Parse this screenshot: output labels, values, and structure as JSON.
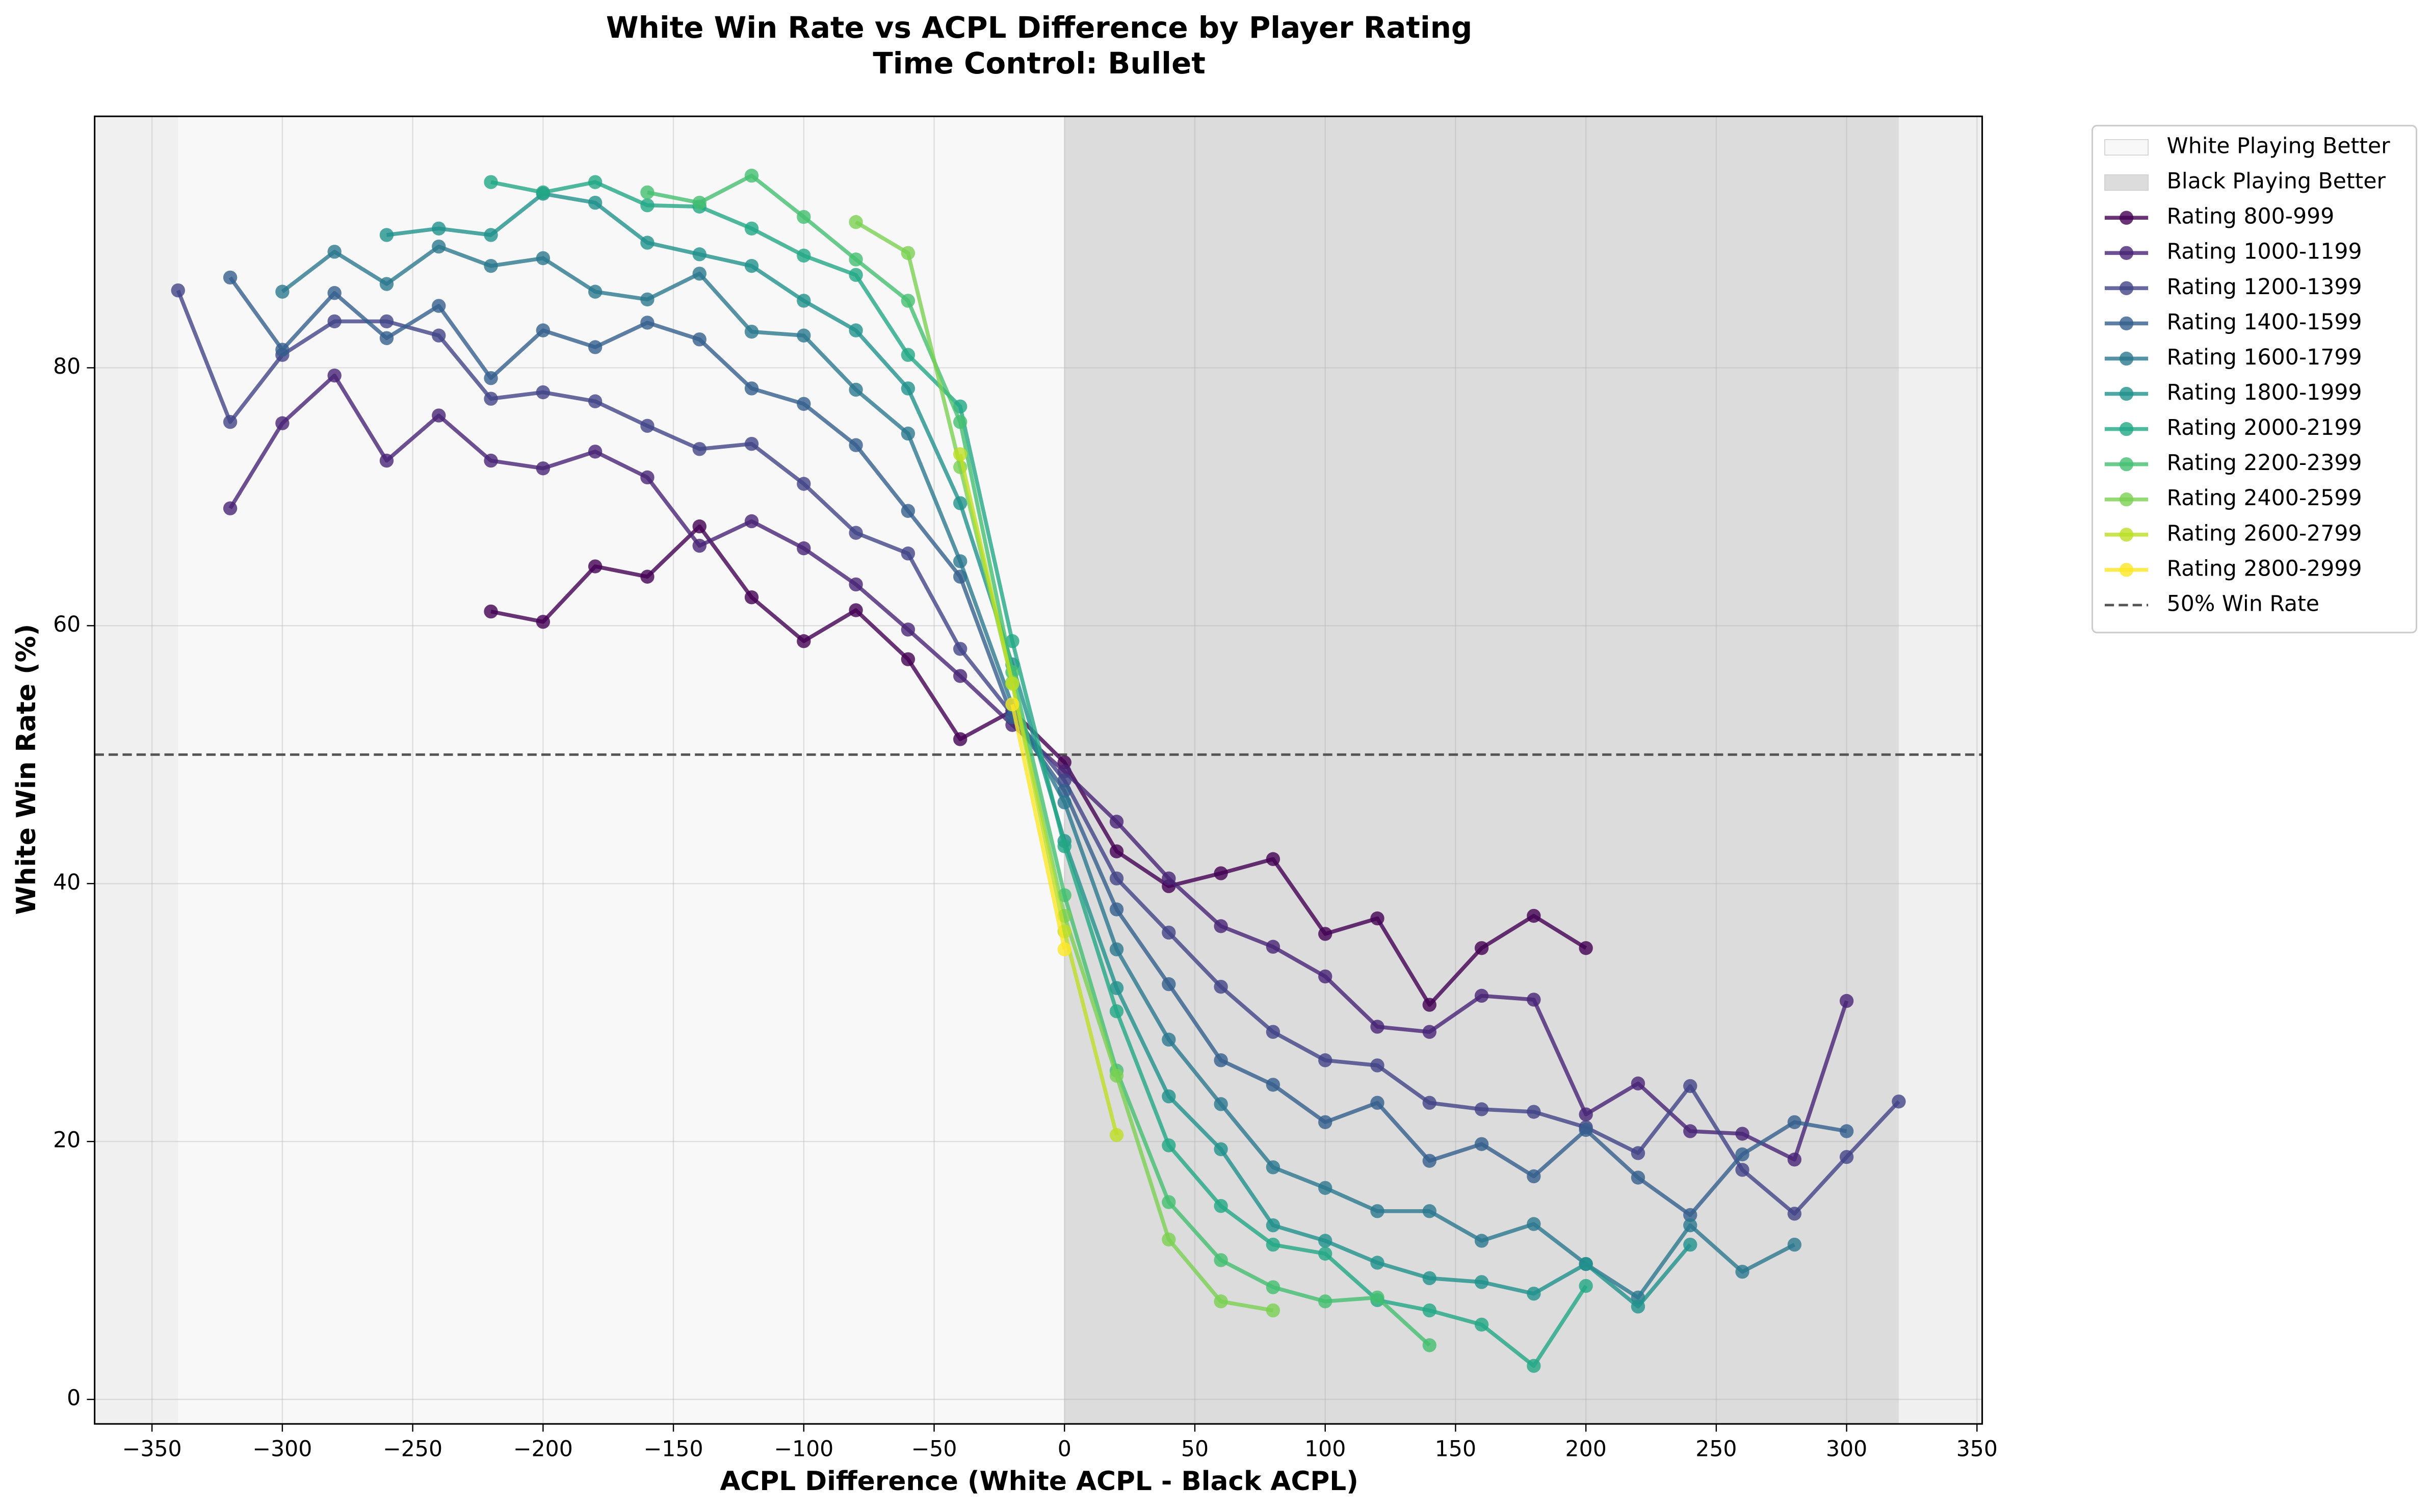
{
  "chart_data": {
    "type": "line",
    "title": "White Win Rate vs ACPL Difference by Player Rating",
    "subtitle": "Time Control: Bullet",
    "x_label": "ACPL Difference (White ACPL - Black ACPL)",
    "y_label": "White Win Rate (%)",
    "xlim": [
      -372,
      352
    ],
    "ylim": [
      -1.9,
      99.5
    ],
    "xticks": [
      {
        "value": -350,
        "label": "−350"
      },
      {
        "value": -300,
        "label": "−300"
      },
      {
        "value": -250,
        "label": "−250"
      },
      {
        "value": -200,
        "label": "−200"
      },
      {
        "value": -150,
        "label": "−150"
      },
      {
        "value": -100,
        "label": "−100"
      },
      {
        "value": -50,
        "label": "−50"
      },
      0,
      50,
      100,
      150,
      200,
      250,
      300,
      350
    ],
    "yticks": [
      0,
      20,
      40,
      60,
      80
    ],
    "grid": true,
    "legend": "outside-upper-right",
    "spans": [
      {
        "name": "White Playing Better",
        "color": "#f8f8f8",
        "xmin": -340,
        "xmax": 0
      },
      {
        "name": "Black Playing Better",
        "color": "#dcdcdc",
        "xmin": 0,
        "xmax": 320
      }
    ],
    "series": [
      {
        "name": "Rating 800-999",
        "color": "#440154",
        "x": [
          -220,
          -200,
          -180,
          -160,
          -140,
          -120,
          -100,
          -80,
          -60,
          -40,
          -20,
          0,
          20,
          40,
          60,
          80,
          100,
          120,
          140,
          160,
          180,
          200
        ],
        "values": [
          61.1,
          60.3,
          64.6,
          63.8,
          67.7,
          62.2,
          58.8,
          61.2,
          57.4,
          51.2,
          53.4,
          49.4,
          42.5,
          39.8,
          40.8,
          41.9,
          36.1,
          37.3,
          30.6,
          35.0,
          37.5,
          35.0
        ]
      },
      {
        "name": "Rating 1000-1199",
        "color": "#482475",
        "x": [
          -320,
          -300,
          -280,
          -260,
          -240,
          -220,
          -200,
          -180,
          -160,
          -140,
          -120,
          -100,
          -80,
          -60,
          -40,
          -20,
          0,
          20,
          40,
          60,
          80,
          100,
          120,
          140,
          160,
          180,
          200,
          220,
          240,
          260,
          280,
          300
        ],
        "values": [
          69.1,
          75.7,
          79.4,
          72.8,
          76.3,
          72.8,
          72.2,
          73.5,
          71.5,
          66.2,
          68.1,
          66.0,
          63.2,
          59.7,
          56.1,
          52.3,
          48.7,
          44.8,
          40.4,
          36.7,
          35.1,
          32.8,
          28.9,
          28.5,
          31.3,
          31.0,
          22.1,
          24.5,
          20.8,
          20.6,
          18.6,
          30.9
        ]
      },
      {
        "name": "Rating 1200-1399",
        "color": "#414487",
        "x": [
          -340,
          -320,
          -300,
          -280,
          -260,
          -240,
          -220,
          -200,
          -180,
          -160,
          -140,
          -120,
          -100,
          -80,
          -60,
          -40,
          -20,
          0,
          20,
          40,
          60,
          80,
          100,
          120,
          140,
          160,
          180,
          200,
          220,
          240,
          260,
          280,
          300,
          320
        ],
        "values": [
          86.0,
          75.8,
          81.0,
          83.6,
          83.6,
          82.5,
          77.6,
          78.1,
          77.4,
          75.5,
          73.7,
          74.1,
          71.0,
          67.2,
          65.6,
          58.2,
          53.1,
          48.0,
          40.4,
          36.2,
          32.0,
          28.5,
          26.3,
          25.9,
          23.0,
          22.5,
          22.3,
          21.1,
          19.1,
          24.3,
          17.8,
          14.4,
          18.8,
          23.1
        ]
      },
      {
        "name": "Rating 1400-1599",
        "color": "#355f8d",
        "x": [
          -320,
          -300,
          -280,
          -260,
          -240,
          -220,
          -200,
          -180,
          -160,
          -140,
          -120,
          -100,
          -80,
          -60,
          -40,
          -20,
          0,
          20,
          40,
          60,
          80,
          100,
          120,
          140,
          160,
          180,
          200,
          220,
          240,
          260,
          280,
          300
        ],
        "values": [
          87.0,
          81.4,
          85.8,
          82.3,
          84.8,
          79.2,
          82.9,
          81.6,
          83.5,
          82.2,
          78.4,
          77.2,
          74.0,
          68.9,
          63.8,
          52.9,
          47.2,
          38.0,
          32.2,
          26.3,
          24.4,
          21.5,
          23.0,
          18.5,
          19.8,
          17.3,
          20.9,
          17.2,
          14.3,
          19.0,
          21.5,
          20.8
        ]
      },
      {
        "name": "Rating 1600-1799",
        "color": "#2a788e",
        "x": [
          -300,
          -280,
          -260,
          -240,
          -220,
          -200,
          -180,
          -160,
          -140,
          -120,
          -100,
          -80,
          -60,
          -40,
          -20,
          0,
          20,
          40,
          60,
          80,
          100,
          120,
          140,
          160,
          180,
          200,
          220,
          240,
          260,
          280
        ],
        "values": [
          85.9,
          89.0,
          86.5,
          89.4,
          87.9,
          88.5,
          85.9,
          85.3,
          87.3,
          82.8,
          82.5,
          78.3,
          74.9,
          65.0,
          53.8,
          46.3,
          34.9,
          27.9,
          22.9,
          18.0,
          16.4,
          14.6,
          14.6,
          12.3,
          13.6,
          10.5,
          7.9,
          13.5,
          9.9,
          12.0
        ]
      },
      {
        "name": "Rating 1800-1999",
        "color": "#21918c",
        "x": [
          -260,
          -240,
          -220,
          -200,
          -180,
          -160,
          -140,
          -120,
          -100,
          -80,
          -60,
          -40,
          -20,
          0,
          20,
          40,
          60,
          80,
          100,
          120,
          140,
          160,
          180,
          200,
          220,
          240
        ],
        "values": [
          90.3,
          90.8,
          90.3,
          93.5,
          92.8,
          89.7,
          88.8,
          87.9,
          85.2,
          82.9,
          78.4,
          69.5,
          57.0,
          43.3,
          31.9,
          23.5,
          19.4,
          13.5,
          12.3,
          10.6,
          9.4,
          9.1,
          8.2,
          10.5,
          7.2,
          12.0
        ]
      },
      {
        "name": "Rating 2000-2199",
        "color": "#22a884",
        "x": [
          -220,
          -200,
          -180,
          -160,
          -140,
          -120,
          -100,
          -80,
          -60,
          -40,
          -20,
          0,
          20,
          40,
          60,
          80,
          100,
          120,
          140,
          160,
          180,
          200
        ],
        "values": [
          94.4,
          93.6,
          94.4,
          92.6,
          92.5,
          90.8,
          88.7,
          87.2,
          81.0,
          77.0,
          58.8,
          42.9,
          30.1,
          19.7,
          15.0,
          12.0,
          11.3,
          7.7,
          6.9,
          5.8,
          2.6,
          8.8
        ]
      },
      {
        "name": "Rating 2200-2399",
        "color": "#44bf70",
        "x": [
          -160,
          -140,
          -120,
          -100,
          -80,
          -60,
          -40,
          -20,
          0,
          20,
          40,
          60,
          80,
          100,
          120,
          140
        ],
        "values": [
          93.6,
          92.8,
          94.9,
          91.7,
          88.4,
          85.2,
          75.8,
          56.4,
          39.1,
          25.5,
          15.3,
          10.8,
          8.7,
          7.6,
          7.9,
          4.2
        ]
      },
      {
        "name": "Rating 2400-2599",
        "color": "#7ad151",
        "x": [
          -80,
          -60,
          -40,
          -20,
          0,
          20,
          40,
          60,
          80
        ],
        "values": [
          91.3,
          88.9,
          72.3,
          55.6,
          37.5,
          25.1,
          12.4,
          7.6,
          6.9
        ]
      },
      {
        "name": "Rating 2600-2799",
        "color": "#bddf26",
        "x": [
          -40,
          -20,
          0,
          20
        ],
        "values": [
          73.3,
          55.5,
          36.3,
          20.5
        ]
      },
      {
        "name": "Rating 2800-2999",
        "color": "#fde725",
        "x": [
          -20,
          0
        ],
        "values": [
          53.9,
          34.9
        ]
      }
    ],
    "hline": {
      "name": "50% Win Rate",
      "value": 50,
      "color": "#555555"
    }
  }
}
